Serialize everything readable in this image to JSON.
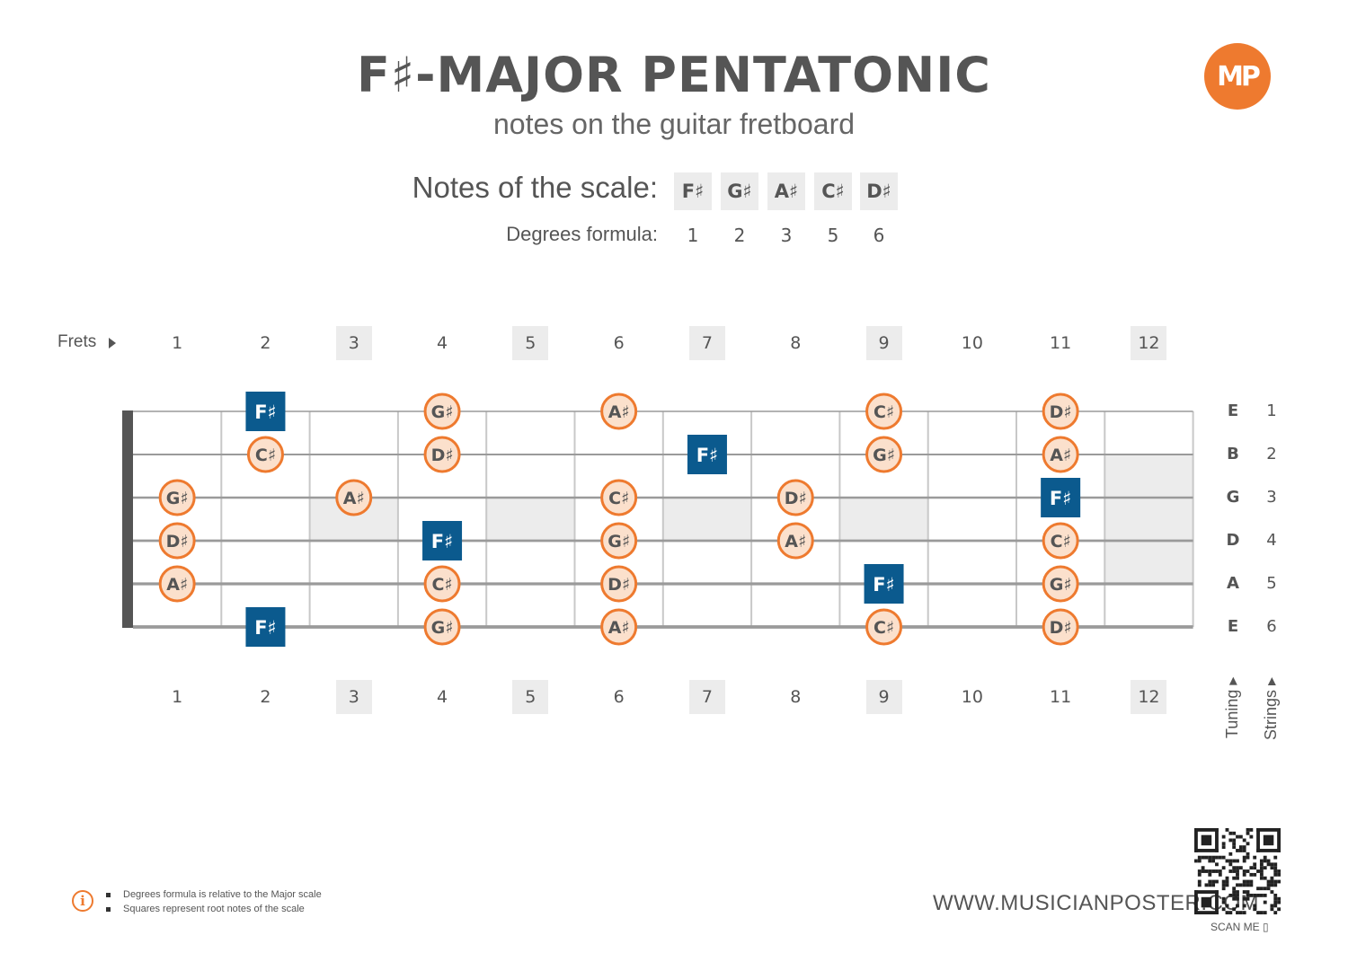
{
  "header": {
    "title": "F♯-MAJOR PENTATONIC",
    "subtitle": "notes on the guitar fretboard",
    "logo_text": "MP"
  },
  "scale": {
    "notes_label": "Notes of the scale:",
    "degrees_label": "Degrees formula:",
    "notes": [
      "F♯",
      "G♯",
      "A♯",
      "C♯",
      "D♯"
    ],
    "degrees": [
      "1",
      "2",
      "3",
      "5",
      "6"
    ]
  },
  "fretboard": {
    "frets_label": "Frets",
    "frets": [
      "1",
      "2",
      "3",
      "4",
      "5",
      "6",
      "7",
      "8",
      "9",
      "10",
      "11",
      "12"
    ],
    "marker_frets": [
      3,
      5,
      7,
      9,
      12
    ],
    "strings": [
      {
        "number": "1",
        "tuning": "E"
      },
      {
        "number": "2",
        "tuning": "B"
      },
      {
        "number": "3",
        "tuning": "G"
      },
      {
        "number": "4",
        "tuning": "D"
      },
      {
        "number": "5",
        "tuning": "A"
      },
      {
        "number": "6",
        "tuning": "E"
      }
    ],
    "tuning_label": "Tuning",
    "strings_label": "Strings",
    "notes": [
      {
        "string": 1,
        "fret": 2,
        "note": "F♯",
        "root": true
      },
      {
        "string": 1,
        "fret": 4,
        "note": "G♯",
        "root": false
      },
      {
        "string": 1,
        "fret": 6,
        "note": "A♯",
        "root": false
      },
      {
        "string": 1,
        "fret": 9,
        "note": "C♯",
        "root": false
      },
      {
        "string": 1,
        "fret": 11,
        "note": "D♯",
        "root": false
      },
      {
        "string": 2,
        "fret": 2,
        "note": "C♯",
        "root": false
      },
      {
        "string": 2,
        "fret": 4,
        "note": "D♯",
        "root": false
      },
      {
        "string": 2,
        "fret": 7,
        "note": "F♯",
        "root": true
      },
      {
        "string": 2,
        "fret": 9,
        "note": "G♯",
        "root": false
      },
      {
        "string": 2,
        "fret": 11,
        "note": "A♯",
        "root": false
      },
      {
        "string": 3,
        "fret": 1,
        "note": "G♯",
        "root": false
      },
      {
        "string": 3,
        "fret": 3,
        "note": "A♯",
        "root": false
      },
      {
        "string": 3,
        "fret": 6,
        "note": "C♯",
        "root": false
      },
      {
        "string": 3,
        "fret": 8,
        "note": "D♯",
        "root": false
      },
      {
        "string": 3,
        "fret": 11,
        "note": "F♯",
        "root": true
      },
      {
        "string": 4,
        "fret": 1,
        "note": "D♯",
        "root": false
      },
      {
        "string": 4,
        "fret": 4,
        "note": "F♯",
        "root": true
      },
      {
        "string": 4,
        "fret": 6,
        "note": "G♯",
        "root": false
      },
      {
        "string": 4,
        "fret": 8,
        "note": "A♯",
        "root": false
      },
      {
        "string": 4,
        "fret": 11,
        "note": "C♯",
        "root": false
      },
      {
        "string": 5,
        "fret": 1,
        "note": "A♯",
        "root": false
      },
      {
        "string": 5,
        "fret": 4,
        "note": "C♯",
        "root": false
      },
      {
        "string": 5,
        "fret": 6,
        "note": "D♯",
        "root": false
      },
      {
        "string": 5,
        "fret": 9,
        "note": "F♯",
        "root": true
      },
      {
        "string": 5,
        "fret": 11,
        "note": "G♯",
        "root": false
      },
      {
        "string": 6,
        "fret": 2,
        "note": "F♯",
        "root": true
      },
      {
        "string": 6,
        "fret": 4,
        "note": "G♯",
        "root": false
      },
      {
        "string": 6,
        "fret": 6,
        "note": "A♯",
        "root": false
      },
      {
        "string": 6,
        "fret": 9,
        "note": "C♯",
        "root": false
      },
      {
        "string": 6,
        "fret": 11,
        "note": "D♯",
        "root": false
      }
    ]
  },
  "colors": {
    "accent": "#ee7a2f",
    "root_fill": "#0b5a8e",
    "note_fill": "#fbe0cc",
    "marker_shade": "#ececec"
  },
  "footer": {
    "notes": [
      "Degrees formula is relative to the Major scale",
      "Squares represent root notes of the scale"
    ],
    "website": "WWW.MUSICIANPOSTER.COM",
    "scan_label": "SCAN ME"
  }
}
